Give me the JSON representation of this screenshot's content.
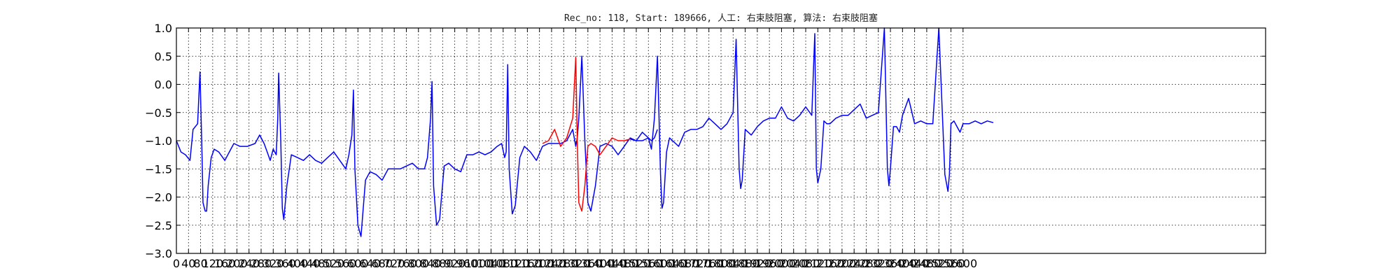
{
  "chart_data": {
    "type": "line",
    "title": "Rec_no: 118, Start: 189666, 人工: 右束肢阻塞, 算法: 右束肢阻塞",
    "xlabel": "",
    "ylabel": "",
    "xlim": [
      0,
      3600
    ],
    "ylim": [
      -3.0,
      1.0
    ],
    "grid": true,
    "x_ticks": [
      0,
      40,
      80,
      120,
      160,
      200,
      240,
      280,
      320,
      360,
      400,
      440,
      480,
      520,
      560,
      600,
      640,
      680,
      720,
      760,
      800,
      840,
      880,
      920,
      960,
      1000,
      1040,
      1080,
      1120,
      1160,
      1200,
      1240,
      1280,
      1320,
      1360,
      1400,
      1440,
      1480,
      1520,
      1560,
      1600,
      1640,
      1680,
      1720,
      1760,
      1800,
      1840,
      1880,
      1920,
      1960,
      2000,
      2040,
      2080,
      2120,
      2160,
      2200,
      2240,
      2280,
      2320,
      2360,
      2400,
      2440,
      2480,
      2520,
      2560,
      2600
    ],
    "y_ticks": [
      1.0,
      0.5,
      0.0,
      -0.5,
      -1.0,
      -1.5,
      -2.0,
      -2.5,
      -3.0
    ],
    "y_tick_labels": [
      "1.0",
      "0.5",
      "0.0",
      "−0.5",
      "−1.0",
      "−1.5",
      "−2.0",
      "−2.5",
      "−3.0"
    ],
    "series": [
      {
        "color": "#0000ff",
        "x": [
          0,
          15,
          30,
          45,
          55,
          70,
          78,
          85,
          88,
          95,
          100,
          105,
          115,
          125,
          140,
          160,
          175,
          190,
          210,
          235,
          260,
          275,
          290,
          300,
          310,
          320,
          330,
          335,
          338,
          345,
          350,
          355,
          365,
          380,
          400,
          420,
          440,
          460,
          480,
          500,
          520,
          540,
          560,
          570,
          580,
          585,
          590,
          600,
          610,
          625,
          640,
          660,
          680,
          700,
          720,
          740,
          760,
          780,
          800,
          820,
          830,
          840,
          845,
          850,
          860,
          870,
          885,
          900,
          920,
          940,
          960,
          980,
          1000,
          1020,
          1040,
          1060,
          1075,
          1085,
          1090,
          1095,
          1100,
          1110,
          1120,
          1135,
          1150,
          1170,
          1190,
          1210,
          1230,
          1250,
          1270,
          1290,
          1310,
          1320,
          1325,
          1330,
          1340,
          1350,
          1360,
          1370,
          1385,
          1400,
          1420,
          1440,
          1460,
          1480,
          1500,
          1520,
          1540,
          1560,
          1570,
          1580,
          1590
        ],
        "y": [
          -1.0,
          -1.2,
          -1.25,
          -1.35,
          -0.8,
          -0.7,
          0.22,
          -1.3,
          -2.1,
          -2.25,
          -2.25,
          -1.8,
          -1.3,
          -1.15,
          -1.2,
          -1.35,
          -1.2,
          -1.05,
          -1.1,
          -1.1,
          -1.05,
          -0.9,
          -1.05,
          -1.2,
          -1.35,
          -1.15,
          -1.25,
          -0.6,
          0.2,
          -1.0,
          -2.2,
          -2.4,
          -1.8,
          -1.25,
          -1.3,
          -1.35,
          -1.25,
          -1.35,
          -1.4,
          -1.3,
          -1.2,
          -1.35,
          -1.5,
          -1.25,
          -0.9,
          -0.1,
          -1.5,
          -2.5,
          -2.7,
          -1.7,
          -1.55,
          -1.6,
          -1.7,
          -1.5,
          -1.5,
          -1.5,
          -1.45,
          -1.4,
          -1.5,
          -1.5,
          -1.3,
          -0.6,
          0.05,
          -1.8,
          -2.5,
          -2.4,
          -1.45,
          -1.4,
          -1.5,
          -1.55,
          -1.25,
          -1.25,
          -1.2,
          -1.25,
          -1.2,
          -1.1,
          -1.05,
          -1.3,
          -1.2,
          0.35,
          -1.5,
          -2.3,
          -2.15,
          -1.3,
          -1.1,
          -1.2,
          -1.35,
          -1.1,
          -1.05,
          -1.05,
          -1.05,
          -1.0,
          -0.8,
          -1.1,
          -0.95,
          -0.6,
          0.5,
          -1.0,
          -2.1,
          -2.25,
          -1.8,
          -1.1,
          -1.05,
          -1.1,
          -1.25,
          -1.1,
          -0.95,
          -1.0,
          -1.0,
          -0.95,
          -1.0,
          -0.95,
          -0.8
        ]
      },
      {
        "color": "#ff0000",
        "x": [
          1210,
          1230,
          1250,
          1270,
          1290,
          1310,
          1320,
          1325,
          1330,
          1340,
          1350,
          1360,
          1370,
          1385,
          1400,
          1420,
          1440,
          1460,
          1480,
          1500
        ],
        "y": [
          -1.05,
          -1.0,
          -0.8,
          -1.1,
          -0.95,
          -0.6,
          0.48,
          -1.0,
          -2.1,
          -2.25,
          -1.8,
          -1.1,
          -1.05,
          -1.1,
          -1.25,
          -1.1,
          -0.95,
          -1.0,
          -1.0,
          -0.97
        ]
      },
      {
        "color": "#0000ff",
        "x": [
          1500,
          1520,
          1540,
          1560,
          1570,
          1580,
          1590,
          1600,
          1605,
          1610,
          1620,
          1630,
          1640,
          1660,
          1680,
          1700,
          1720,
          1740,
          1760,
          1780,
          1800,
          1820,
          1840,
          1850,
          1860,
          1865,
          1870,
          1880,
          1890,
          1900,
          1920,
          1940,
          1960,
          1980,
          2000,
          2020,
          2040,
          2060,
          2080,
          2100,
          2110,
          2115,
          2120,
          2130,
          2140,
          2150,
          2160,
          2180,
          2200,
          2220,
          2240,
          2260,
          2280,
          2300,
          2320,
          2340,
          2350,
          2355,
          2360,
          2370,
          2380,
          2390,
          2400,
          2420,
          2440,
          2460,
          2480,
          2500,
          2520,
          2540,
          2550,
          2555,
          2560,
          2570,
          2580,
          2590,
          2600,
          2620,
          2640,
          2660,
          2680,
          2700
        ],
        "y": [
          -0.97,
          -1.0,
          -0.85,
          -0.95,
          -1.15,
          -0.6,
          0.5,
          -1.6,
          -2.2,
          -2.1,
          -1.2,
          -0.95,
          -1.0,
          -1.1,
          -0.85,
          -0.8,
          -0.8,
          -0.75,
          -0.6,
          -0.7,
          -0.8,
          -0.7,
          -0.5,
          0.8,
          -1.5,
          -1.85,
          -1.7,
          -0.8,
          -0.85,
          -0.9,
          -0.75,
          -0.65,
          -0.6,
          -0.6,
          -0.4,
          -0.6,
          -0.65,
          -0.55,
          -0.4,
          -0.55,
          0.9,
          -1.5,
          -1.75,
          -1.5,
          -0.65,
          -0.7,
          -0.7,
          -0.6,
          -0.55,
          -0.55,
          -0.45,
          -0.35,
          -0.6,
          -0.55,
          -0.5,
          1.0,
          -1.5,
          -1.8,
          -1.5,
          -0.75,
          -0.75,
          -0.85,
          -0.55,
          -0.25,
          -0.7,
          -0.65,
          -0.7,
          -0.7,
          1.0,
          -1.6,
          -1.9,
          -1.6,
          -0.7,
          -0.65,
          -0.75,
          -0.85,
          -0.7,
          -0.7,
          -0.65,
          -0.7,
          -0.65,
          -0.68
        ]
      }
    ]
  }
}
